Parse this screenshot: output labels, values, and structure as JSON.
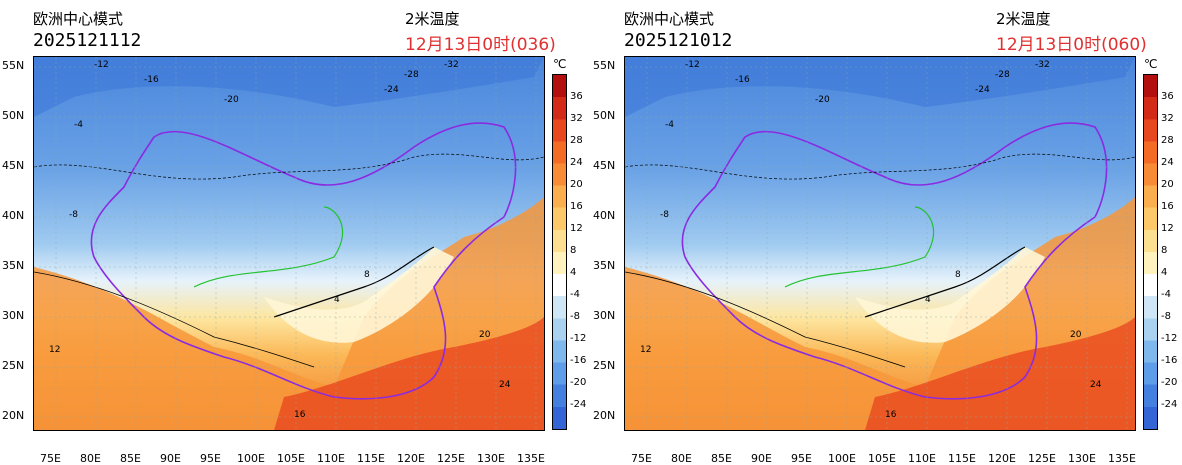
{
  "panels": [
    {
      "model": "欧洲中心模式",
      "run": "2025121112",
      "variable": "2米温度",
      "valid": "12月13日0时(036)"
    },
    {
      "model": "欧洲中心模式",
      "run": "2025121012",
      "variable": "2米温度",
      "valid": "12月13日0时(060)"
    }
  ],
  "lat_labels": [
    "55N",
    "50N",
    "45N",
    "40N",
    "35N",
    "30N",
    "25N",
    "20N"
  ],
  "lon_labels": [
    "75E",
    "80E",
    "85E",
    "90E",
    "95E",
    "100E",
    "105E",
    "110E",
    "115E",
    "120E",
    "125E",
    "130E",
    "135E"
  ],
  "colorbar": {
    "unit": "℃",
    "ticks": [
      "36",
      "32",
      "28",
      "24",
      "20",
      "16",
      "12",
      "8",
      "4",
      "-4",
      "-8",
      "-12",
      "-16",
      "-20",
      "-24"
    ],
    "colors": [
      "#b40f0f",
      "#d42b18",
      "#e8481f",
      "#f46b26",
      "#f88c36",
      "#fbae4e",
      "#fdc86a",
      "#fde08f",
      "#fff2bd",
      "#ffffff",
      "#cfe6f6",
      "#a9d2f1",
      "#7fb8ec",
      "#5e9ee8",
      "#4480e0",
      "#3465d6"
    ]
  },
  "contour_labels_left": [
    {
      "t": "-12"
    },
    {
      "t": "-16"
    },
    {
      "t": "-20"
    },
    {
      "t": "-24"
    },
    {
      "t": "-28"
    },
    {
      "t": "-32"
    },
    {
      "t": "-8"
    },
    {
      "t": "-4"
    },
    {
      "t": "4"
    },
    {
      "t": "8"
    },
    {
      "t": "12"
    },
    {
      "t": "16"
    },
    {
      "t": "20"
    },
    {
      "t": "24"
    }
  ],
  "contour_labels_right": [
    {
      "t": "-12"
    },
    {
      "t": "-16"
    },
    {
      "t": "-20"
    },
    {
      "t": "-24"
    },
    {
      "t": "-28"
    },
    {
      "t": "-32"
    },
    {
      "t": "-8"
    },
    {
      "t": "-4"
    },
    {
      "t": "4"
    },
    {
      "t": "8"
    },
    {
      "t": "12"
    },
    {
      "t": "16"
    },
    {
      "t": "20"
    },
    {
      "t": "24"
    }
  ]
}
